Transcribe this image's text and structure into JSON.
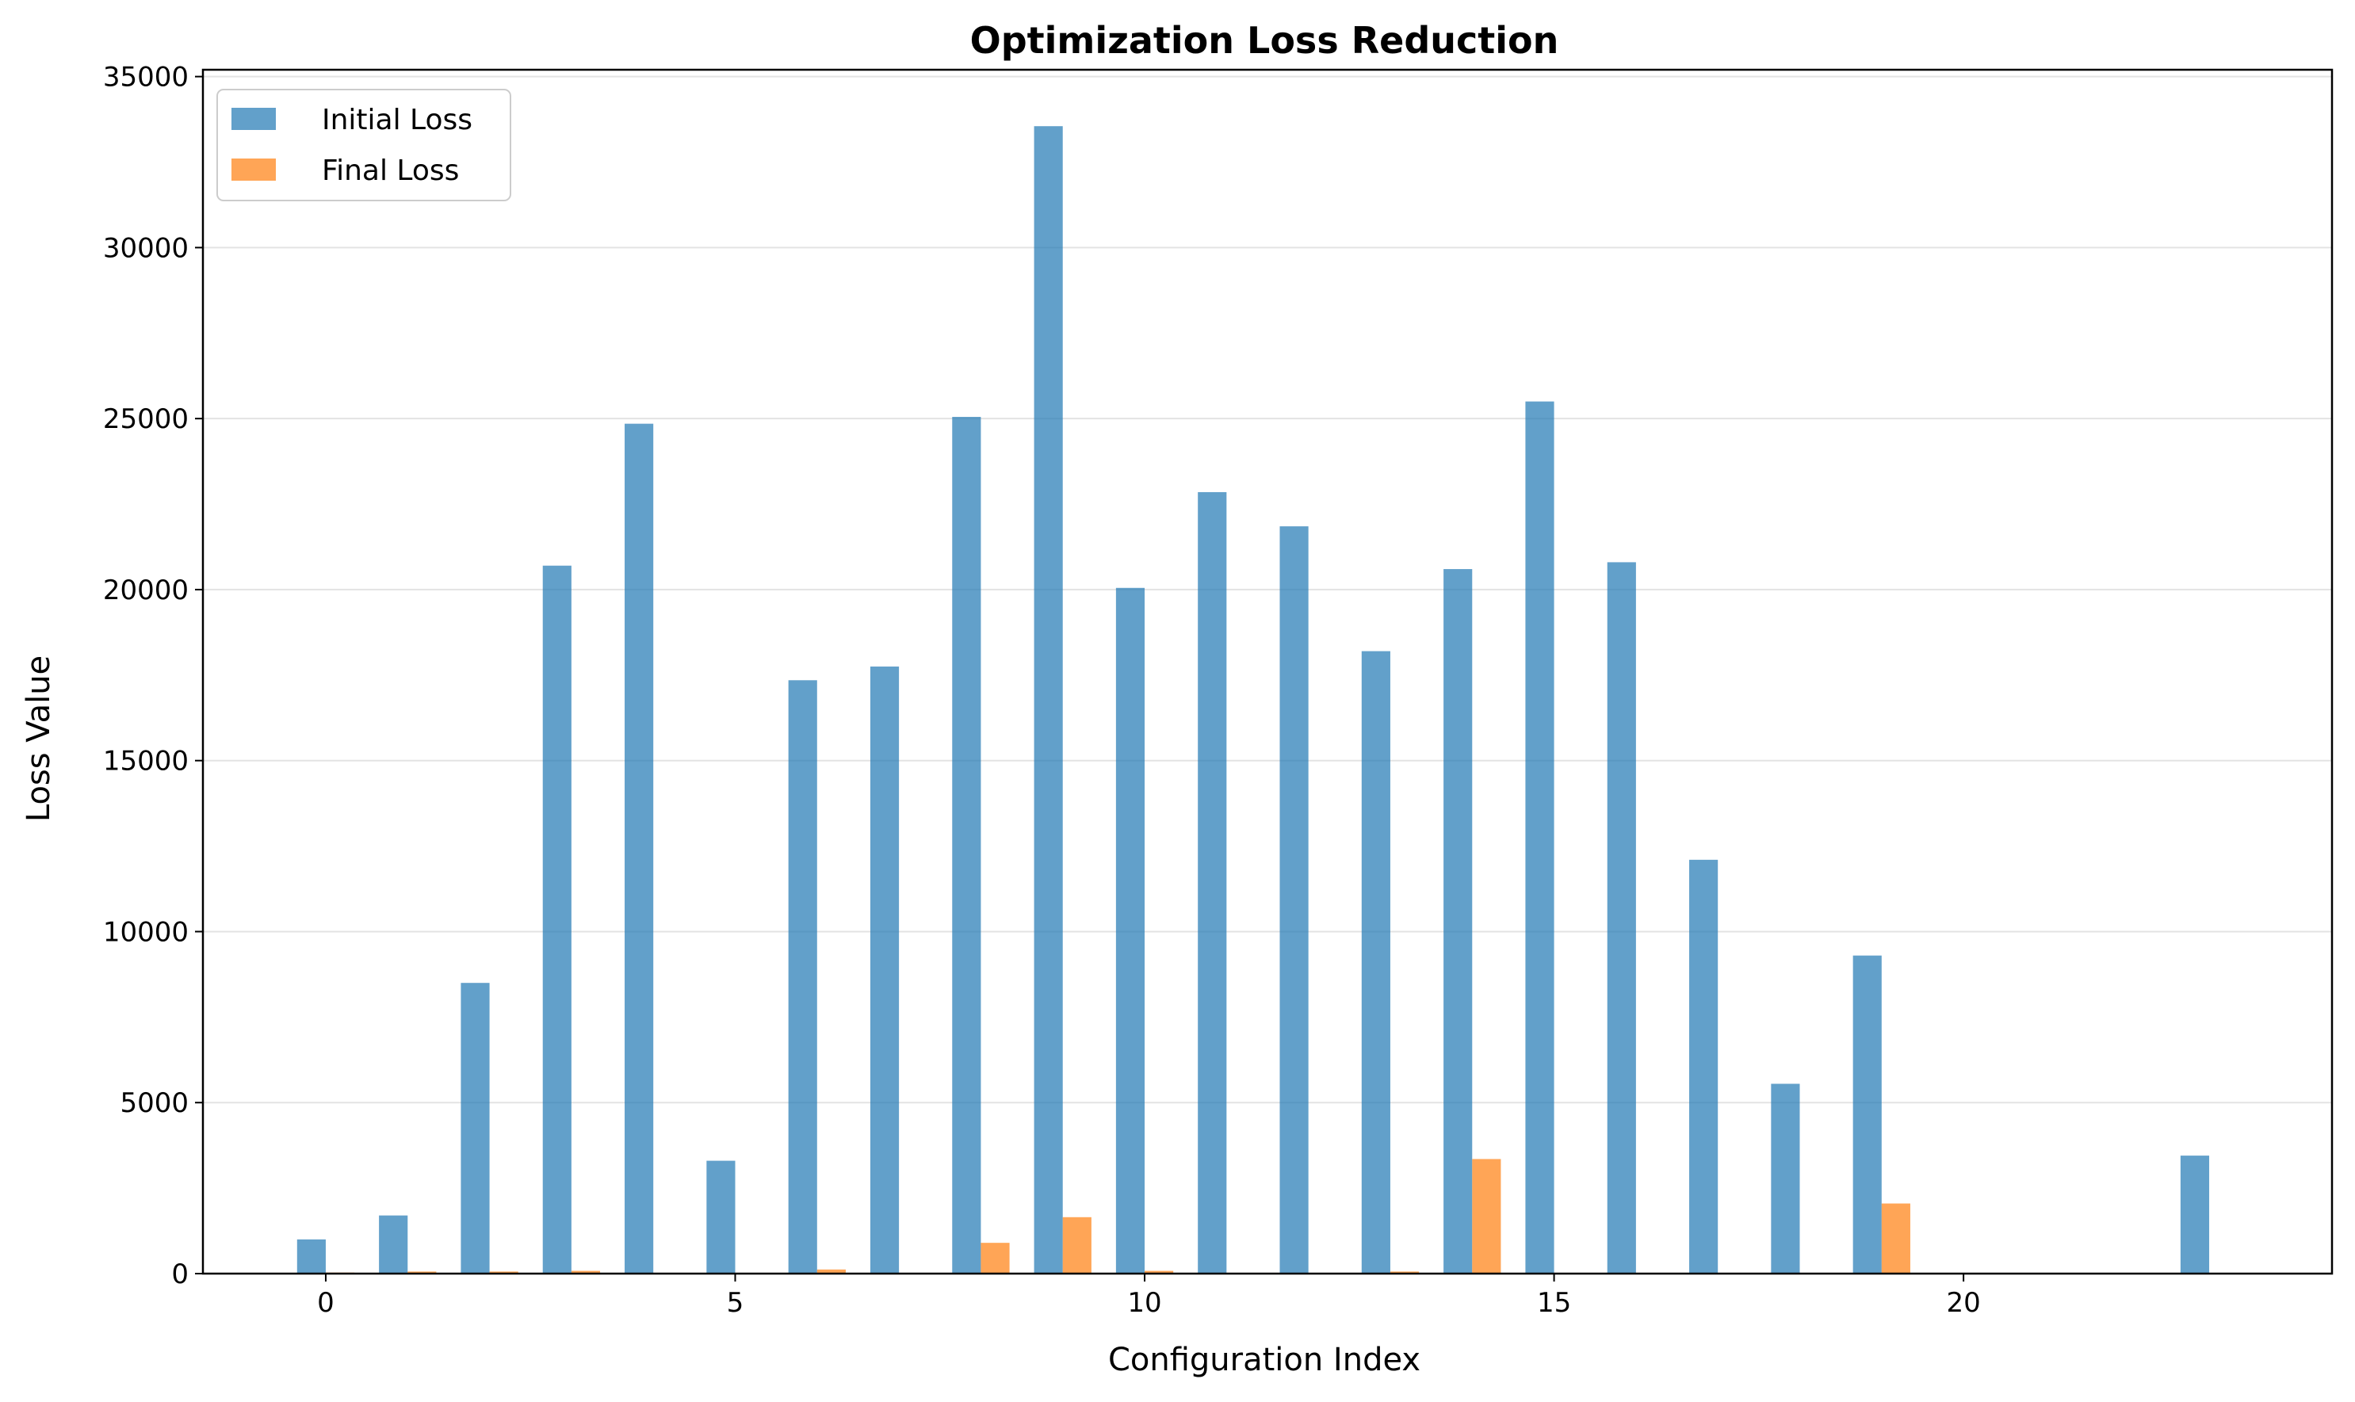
{
  "chart_data": {
    "type": "bar",
    "title": "Optimization Loss Reduction",
    "xlabel": "Configuration Index",
    "ylabel": "Loss Value",
    "x": [
      0,
      1,
      2,
      3,
      4,
      5,
      6,
      7,
      8,
      9,
      10,
      11,
      12,
      13,
      14,
      15,
      16,
      17,
      18,
      19,
      20,
      21,
      22,
      23
    ],
    "series": [
      {
        "name": "Initial Loss",
        "color": "#1f77b4",
        "values": [
          1000,
          1700,
          8500,
          20700,
          24850,
          3300,
          17350,
          17750,
          25050,
          33550,
          20050,
          22850,
          21850,
          18200,
          20600,
          25500,
          20800,
          12100,
          5550,
          9300,
          0,
          0,
          0,
          3450
        ]
      },
      {
        "name": "Final Loss",
        "color": "#ff7f0e",
        "values": [
          30,
          60,
          60,
          80,
          10,
          10,
          120,
          20,
          900,
          1650,
          80,
          10,
          10,
          60,
          3350,
          20,
          0,
          0,
          10,
          2050,
          0,
          0,
          0,
          0
        ]
      }
    ],
    "xlim": [
      -1.5,
      24.5
    ],
    "ylim": [
      0,
      35200
    ],
    "xticks": [
      0,
      5,
      10,
      15,
      20
    ],
    "yticks": [
      0,
      5000,
      10000,
      15000,
      20000,
      25000,
      30000,
      35000
    ],
    "grid": "y",
    "legend": "top-left"
  }
}
